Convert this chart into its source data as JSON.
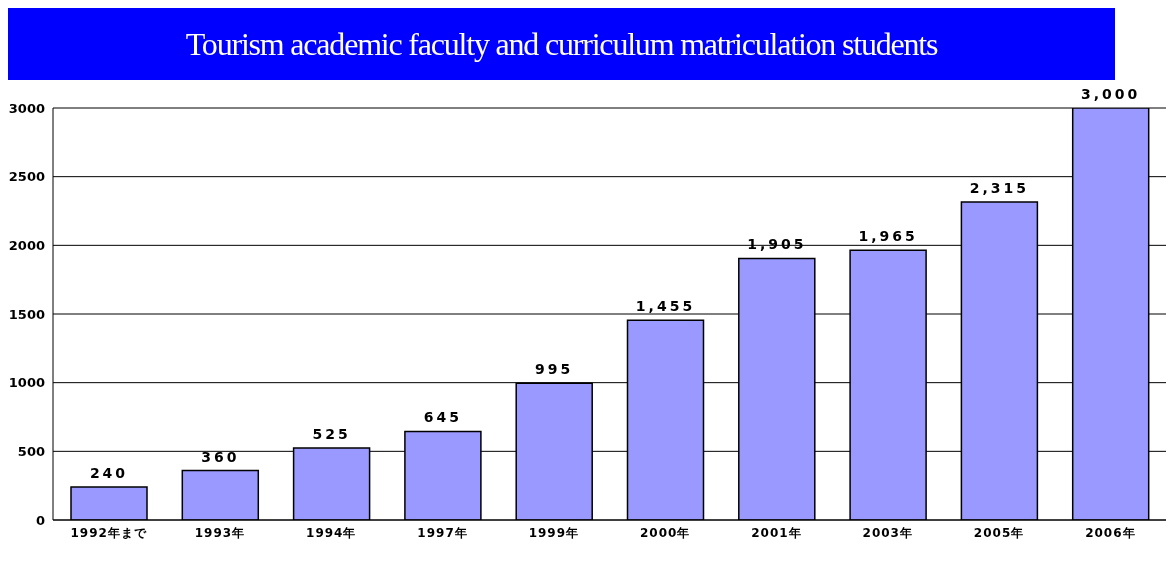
{
  "chart_data": {
    "type": "bar",
    "title": "Tourism academic faculty and curriculum matriculation students",
    "categories": [
      "1992年まで",
      "1993年",
      "1994年",
      "1997年",
      "1999年",
      "2000年",
      "2001年",
      "2003年",
      "2005年",
      "2006年"
    ],
    "values": [
      240,
      360,
      525,
      645,
      995,
      1455,
      1905,
      1965,
      2315,
      3000
    ],
    "color": "#9999ff",
    "ylim": [
      0,
      3000
    ],
    "yticks": [
      0,
      500,
      1000,
      1500,
      2000,
      2500,
      3000
    ],
    "value_labels": [
      "240",
      "360",
      "525",
      "645",
      "995",
      "1,455",
      "1,905",
      "1,965",
      "2,315",
      "3,000"
    ],
    "grid": "y"
  }
}
